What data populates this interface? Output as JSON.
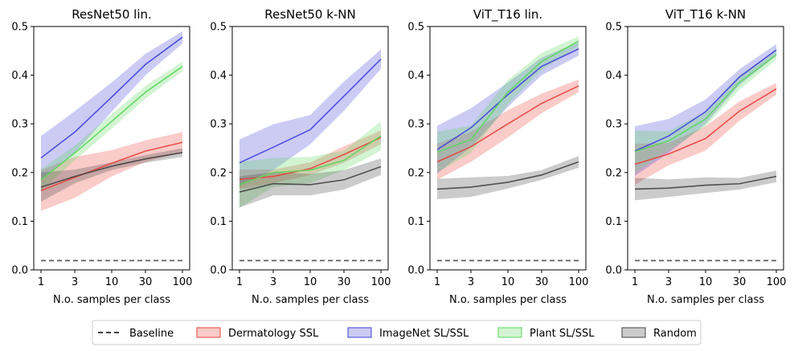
{
  "chart_data": [
    {
      "type": "line",
      "title": "ResNet50 lin.",
      "xlabel": "N.o. samples per class",
      "ylabel": "",
      "x": [
        1,
        3,
        10,
        30,
        100
      ],
      "x_tick_labels": [
        "1",
        "3",
        "10",
        "30",
        "100"
      ],
      "x_scale": "log",
      "ylim": [
        0,
        0.5
      ],
      "y_ticks": [
        "0.0",
        "0.1",
        "0.2",
        "0.3",
        "0.4",
        "0.5"
      ],
      "baseline": 0.019,
      "series": [
        {
          "name": "Dermatology SSL",
          "color": "#e8433c",
          "values": [
            0.163,
            0.19,
            0.219,
            0.244,
            0.262
          ],
          "lower": [
            0.121,
            0.148,
            0.192,
            0.222,
            0.241
          ],
          "upper": [
            0.205,
            0.232,
            0.246,
            0.266,
            0.283
          ]
        },
        {
          "name": "ImageNet SL/SSL",
          "color": "#4343d9",
          "values": [
            0.23,
            0.283,
            0.355,
            0.422,
            0.478
          ],
          "lower": [
            0.185,
            0.24,
            0.325,
            0.4,
            0.465
          ],
          "upper": [
            0.275,
            0.326,
            0.385,
            0.444,
            0.49
          ]
        },
        {
          "name": "Plant SL/SSL",
          "color": "#5cd65c",
          "values": [
            0.185,
            0.24,
            0.305,
            0.365,
            0.418
          ],
          "lower": [
            0.163,
            0.225,
            0.29,
            0.352,
            0.408
          ],
          "upper": [
            0.207,
            0.255,
            0.32,
            0.378,
            0.428
          ]
        },
        {
          "name": "Random",
          "color": "#444444",
          "values": [
            0.17,
            0.192,
            0.213,
            0.228,
            0.241
          ],
          "lower": [
            0.14,
            0.178,
            0.205,
            0.22,
            0.232
          ],
          "upper": [
            0.2,
            0.206,
            0.221,
            0.236,
            0.25
          ]
        }
      ]
    },
    {
      "type": "line",
      "title": "ResNet50 k-NN",
      "xlabel": "N.o. samples per class",
      "ylabel": "",
      "x": [
        1,
        3,
        10,
        30,
        100
      ],
      "x_tick_labels": [
        "1",
        "3",
        "10",
        "30",
        "100"
      ],
      "x_scale": "log",
      "ylim": [
        0,
        0.5
      ],
      "y_ticks": [
        "0.0",
        "0.1",
        "0.2",
        "0.3",
        "0.4",
        "0.5"
      ],
      "baseline": 0.019,
      "series": [
        {
          "name": "Dermatology SSL",
          "color": "#e8433c",
          "values": [
            0.186,
            0.192,
            0.208,
            0.237,
            0.272
          ],
          "lower": [
            0.166,
            0.178,
            0.195,
            0.22,
            0.258
          ],
          "upper": [
            0.206,
            0.206,
            0.221,
            0.254,
            0.286
          ]
        },
        {
          "name": "ImageNet SL/SSL",
          "color": "#4343d9",
          "values": [
            0.22,
            0.252,
            0.288,
            0.357,
            0.433
          ],
          "lower": [
            0.172,
            0.205,
            0.258,
            0.327,
            0.413
          ],
          "upper": [
            0.268,
            0.299,
            0.318,
            0.387,
            0.453
          ]
        },
        {
          "name": "Plant SL/SSL",
          "color": "#5cd65c",
          "values": [
            0.175,
            0.2,
            0.205,
            0.225,
            0.275
          ],
          "lower": [
            0.128,
            0.17,
            0.178,
            0.205,
            0.245
          ],
          "upper": [
            0.222,
            0.23,
            0.232,
            0.245,
            0.305
          ]
        },
        {
          "name": "Random",
          "color": "#444444",
          "values": [
            0.16,
            0.177,
            0.175,
            0.185,
            0.212
          ],
          "lower": [
            0.128,
            0.153,
            0.153,
            0.165,
            0.195
          ],
          "upper": [
            0.192,
            0.201,
            0.197,
            0.205,
            0.229
          ]
        }
      ]
    },
    {
      "type": "line",
      "title": "ViT_T16 lin.",
      "xlabel": "N.o. samples per class",
      "ylabel": "",
      "x": [
        1,
        3,
        10,
        30,
        100
      ],
      "x_tick_labels": [
        "1",
        "3",
        "10",
        "30",
        "100"
      ],
      "x_scale": "log",
      "ylim": [
        0,
        0.5
      ],
      "y_ticks": [
        "0.0",
        "0.1",
        "0.2",
        "0.3",
        "0.4",
        "0.5"
      ],
      "baseline": 0.019,
      "series": [
        {
          "name": "Dermatology SSL",
          "color": "#e8433c",
          "values": [
            0.222,
            0.253,
            0.3,
            0.342,
            0.378
          ],
          "lower": [
            0.185,
            0.222,
            0.272,
            0.322,
            0.365
          ],
          "upper": [
            0.259,
            0.284,
            0.328,
            0.362,
            0.391
          ]
        },
        {
          "name": "ImageNet SL/SSL",
          "color": "#4343d9",
          "values": [
            0.247,
            0.292,
            0.36,
            0.418,
            0.454
          ],
          "lower": [
            0.198,
            0.252,
            0.335,
            0.4,
            0.44
          ],
          "upper": [
            0.296,
            0.332,
            0.385,
            0.436,
            0.468
          ]
        },
        {
          "name": "Plant SL/SSL",
          "color": "#5cd65c",
          "values": [
            0.242,
            0.268,
            0.365,
            0.428,
            0.47
          ],
          "lower": [
            0.2,
            0.24,
            0.34,
            0.41,
            0.46
          ],
          "upper": [
            0.284,
            0.296,
            0.39,
            0.446,
            0.48
          ]
        },
        {
          "name": "Random",
          "color": "#444444",
          "values": [
            0.166,
            0.17,
            0.18,
            0.195,
            0.222
          ],
          "lower": [
            0.145,
            0.15,
            0.167,
            0.185,
            0.21
          ],
          "upper": [
            0.187,
            0.19,
            0.193,
            0.205,
            0.234
          ]
        }
      ]
    },
    {
      "type": "line",
      "title": "ViT_T16 k-NN",
      "xlabel": "N.o. samples per class",
      "ylabel": "",
      "x": [
        1,
        3,
        10,
        30,
        100
      ],
      "x_tick_labels": [
        "1",
        "3",
        "10",
        "30",
        "100"
      ],
      "x_scale": "log",
      "ylim": [
        0,
        0.5
      ],
      "y_ticks": [
        "0.0",
        "0.1",
        "0.2",
        "0.3",
        "0.4",
        "0.5"
      ],
      "baseline": 0.019,
      "series": [
        {
          "name": "Dermatology SSL",
          "color": "#e8433c",
          "values": [
            0.217,
            0.238,
            0.27,
            0.326,
            0.372
          ],
          "lower": [
            0.175,
            0.215,
            0.245,
            0.306,
            0.36
          ],
          "upper": [
            0.259,
            0.261,
            0.295,
            0.346,
            0.384
          ]
        },
        {
          "name": "ImageNet SL/SSL",
          "color": "#4343d9",
          "values": [
            0.244,
            0.275,
            0.325,
            0.396,
            0.452
          ],
          "lower": [
            0.193,
            0.24,
            0.3,
            0.38,
            0.44
          ],
          "upper": [
            0.295,
            0.31,
            0.35,
            0.412,
            0.464
          ]
        },
        {
          "name": "Plant SL/SSL",
          "color": "#5cd65c",
          "values": [
            0.243,
            0.265,
            0.31,
            0.385,
            0.442
          ],
          "lower": [
            0.2,
            0.245,
            0.295,
            0.37,
            0.432
          ],
          "upper": [
            0.286,
            0.285,
            0.325,
            0.4,
            0.452
          ]
        },
        {
          "name": "Random",
          "color": "#444444",
          "values": [
            0.166,
            0.168,
            0.174,
            0.177,
            0.192
          ],
          "lower": [
            0.143,
            0.15,
            0.158,
            0.165,
            0.18
          ],
          "upper": [
            0.189,
            0.186,
            0.19,
            0.189,
            0.204
          ]
        }
      ]
    }
  ],
  "legend": {
    "placement": "bottom-center",
    "items": [
      {
        "label": "Baseline",
        "kind": "dashed-line",
        "color": "#000000"
      },
      {
        "label": "Dermatology SSL",
        "kind": "patch",
        "color": "#e8433c"
      },
      {
        "label": "ImageNet SL/SSL",
        "kind": "patch",
        "color": "#4343d9"
      },
      {
        "label": "Plant SL/SSL",
        "kind": "patch",
        "color": "#5cd65c"
      },
      {
        "label": "Random",
        "kind": "patch",
        "color": "#444444"
      }
    ]
  },
  "style": {
    "baseline_color": "#555555",
    "band_opacity": 0.28
  }
}
